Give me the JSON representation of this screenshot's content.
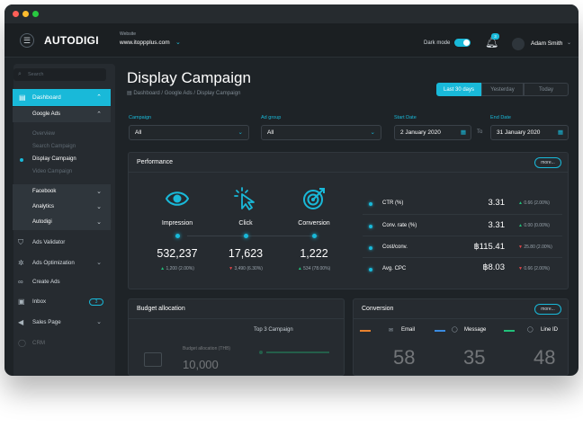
{
  "header": {
    "logo": "AUTODIGI",
    "website_label": "Website",
    "website_url": "www.itoppplus.com",
    "dark_mode_label": "Dark mode",
    "notification_count": "3",
    "user_name": "Adam Smith"
  },
  "sidebar": {
    "search_placeholder": "Search",
    "dashboard_label": "Dashboard",
    "google_ads": {
      "label": "Google Ads",
      "items": [
        "Overview",
        "Search Campaign",
        "Display Campaign",
        "Video Campaign"
      ],
      "active_item": "Display Campaign"
    },
    "groups": [
      "Facebook",
      "Analytics",
      "Autodigi"
    ],
    "items": [
      {
        "label": "Ads Validator",
        "icon": "shield-icon"
      },
      {
        "label": "Ads Optimization",
        "icon": "sparkle-icon"
      },
      {
        "label": "Create Ads",
        "icon": "link-icon"
      },
      {
        "label": "Inbox",
        "icon": "inbox-icon",
        "badge": "3"
      },
      {
        "label": "Sales Page",
        "icon": "megaphone-icon"
      },
      {
        "label": "CRM",
        "icon": "user-icon"
      }
    ]
  },
  "page": {
    "title": "Display Campaign",
    "breadcrumb": "Dashboard / Google Ads / Display Campaign",
    "date_ranges": [
      "Last 30 days",
      "Yesterday",
      "Today"
    ],
    "active_range": "Last 30 days"
  },
  "filters": {
    "campaign": {
      "label": "Campaign",
      "value": "All"
    },
    "ad_group": {
      "label": "Ad group",
      "value": "All"
    },
    "start_date": {
      "label": "Start Date",
      "value": "2 January 2020"
    },
    "to_label": "To",
    "end_date": {
      "label": "End Date",
      "value": "31 January 2020"
    }
  },
  "performance": {
    "title": "Performance",
    "more_label": "more...",
    "kpis": [
      {
        "name": "Impression",
        "value": "532,237",
        "delta": "1,200 (2.00%)",
        "trend": "up",
        "icon": "eye-icon"
      },
      {
        "name": "Click",
        "value": "17,623",
        "delta": "3,490 (6.30%)",
        "trend": "down",
        "icon": "cursor-click-icon"
      },
      {
        "name": "Conversion",
        "value": "1,222",
        "delta": "534 (78.00%)",
        "trend": "up",
        "icon": "target-icon"
      }
    ],
    "metrics": [
      {
        "label": "CTR (%)",
        "value": "3.31",
        "delta": "0.66 (2.00%)",
        "trend": "up"
      },
      {
        "label": "Conv. rate (%)",
        "value": "3.31",
        "delta": "0.00 (0.00%)",
        "trend": "up"
      },
      {
        "label": "Cost/conv.",
        "value": "฿115.41",
        "delta": "25.80 (2.00%)",
        "trend": "down"
      },
      {
        "label": "Avg. CPC",
        "value": "฿8.03",
        "delta": "0.66 (2.00%)",
        "trend": "down"
      }
    ]
  },
  "budget": {
    "title": "Budget allocation",
    "top_label": "Top 3 Campaign",
    "sub_label": "Budget allocation (THB)",
    "sub_value": "10,000"
  },
  "conversion": {
    "title": "Conversion",
    "more_label": "more...",
    "channels": [
      {
        "label": "Email",
        "value": "58",
        "color": "#e8822e"
      },
      {
        "label": "Message",
        "value": "35",
        "color": "#3a8be0"
      },
      {
        "label": "Line ID",
        "value": "48",
        "color": "#21c07a"
      }
    ]
  },
  "colors": {
    "accent": "#19b9d9",
    "up": "#21c07a",
    "down": "#e0454a",
    "background": "#1e2327"
  }
}
